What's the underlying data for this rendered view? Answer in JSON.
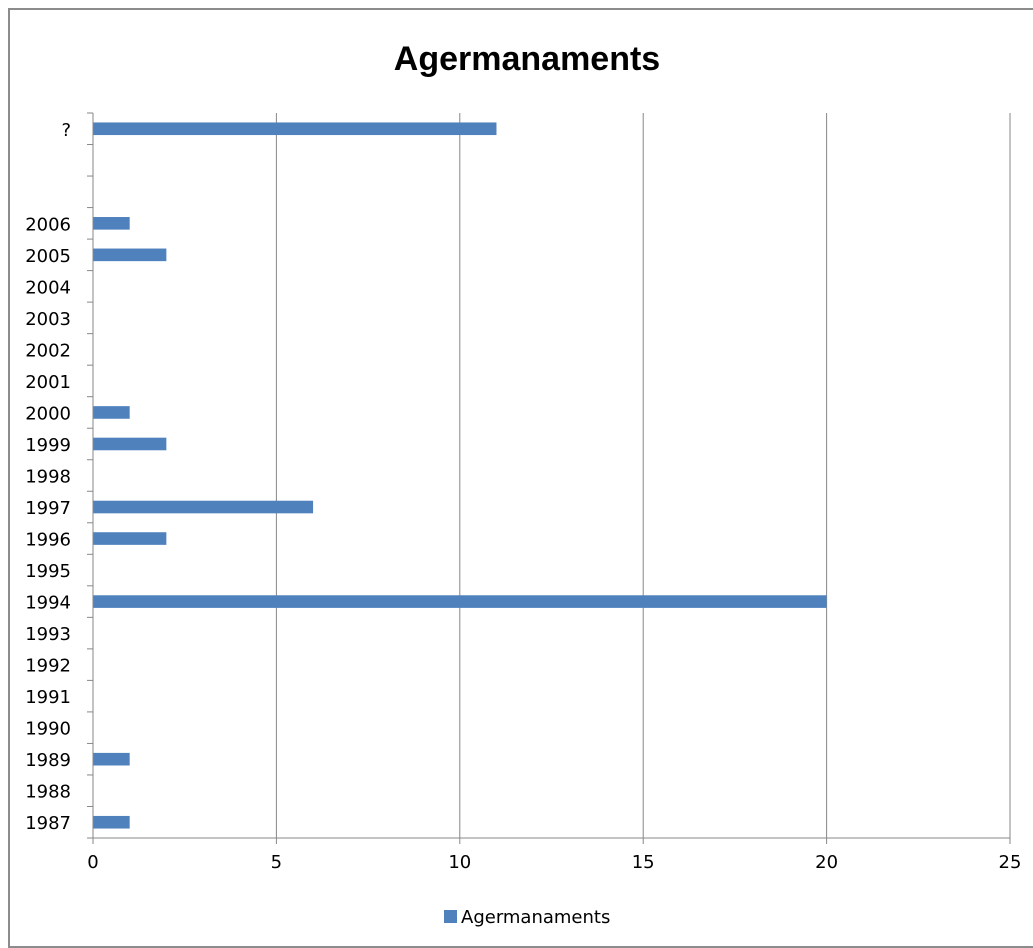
{
  "chart_data": {
    "type": "bar",
    "orientation": "horizontal",
    "title": "Agermanaments",
    "xlabel": "",
    "ylabel": "",
    "categories": [
      "1987",
      "1988",
      "1989",
      "1990",
      "1991",
      "1992",
      "1993",
      "1994",
      "1995",
      "1996",
      "1997",
      "1998",
      "1999",
      "2000",
      "2001",
      "2002",
      "2003",
      "2004",
      "2005",
      "2006",
      "",
      "",
      "?"
    ],
    "series": [
      {
        "name": "Agermanaments",
        "color": "#4f81bd",
        "values": [
          1,
          0,
          1,
          0,
          0,
          0,
          0,
          20,
          0,
          2,
          6,
          0,
          2,
          1,
          0,
          0,
          0,
          0,
          2,
          1,
          0,
          0,
          11
        ]
      }
    ],
    "xlim": [
      0,
      25
    ],
    "x_ticks": [
      0,
      5,
      10,
      15,
      20,
      25
    ],
    "grid": "vertical",
    "legend_position": "bottom"
  }
}
